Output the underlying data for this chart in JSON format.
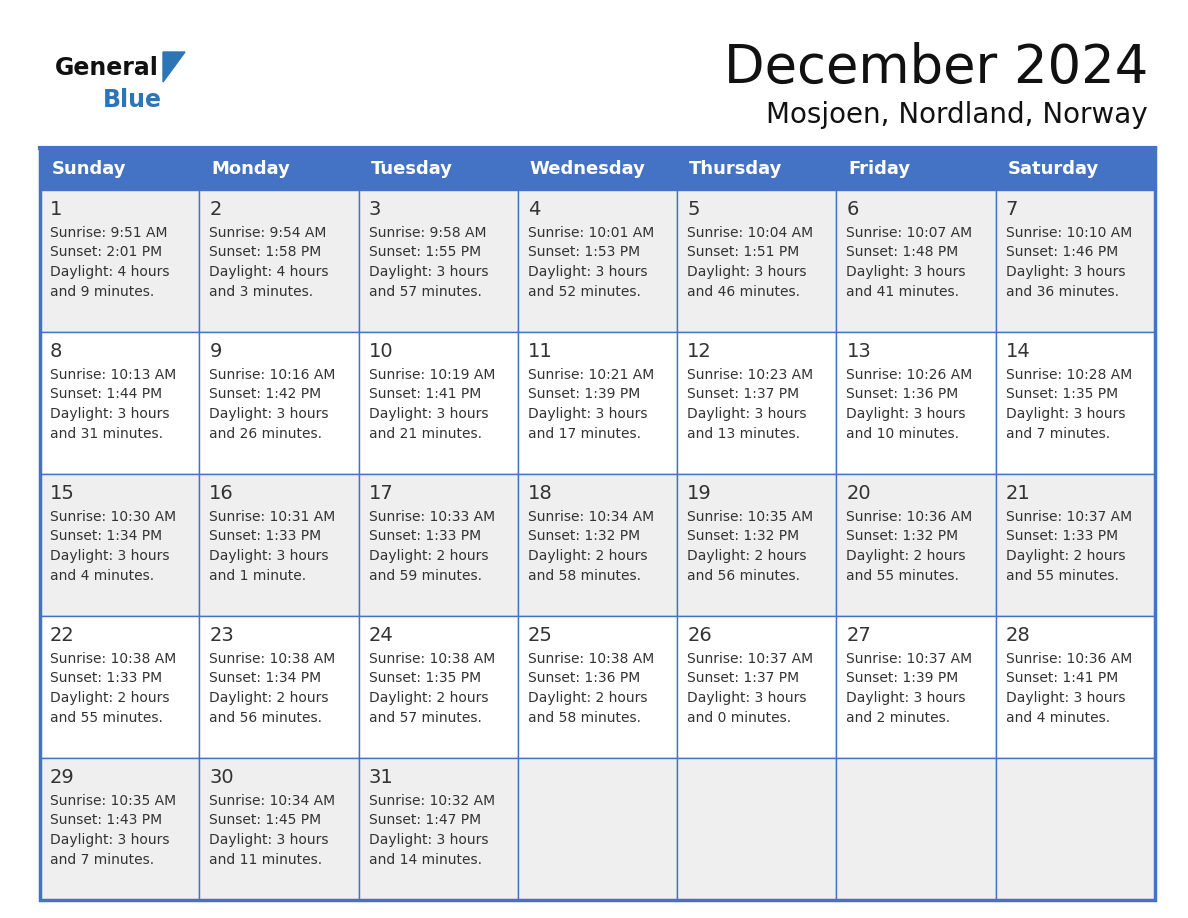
{
  "title": "December 2024",
  "subtitle": "Mosjoen, Nordland, Norway",
  "header_color": "#4472C4",
  "header_text_color": "#FFFFFF",
  "days_of_week": [
    "Sunday",
    "Monday",
    "Tuesday",
    "Wednesday",
    "Thursday",
    "Friday",
    "Saturday"
  ],
  "weeks": [
    [
      {
        "day": 1,
        "sunrise": "9:51 AM",
        "sunset": "2:01 PM",
        "daylight": "4 hours and 9 minutes."
      },
      {
        "day": 2,
        "sunrise": "9:54 AM",
        "sunset": "1:58 PM",
        "daylight": "4 hours and 3 minutes."
      },
      {
        "day": 3,
        "sunrise": "9:58 AM",
        "sunset": "1:55 PM",
        "daylight": "3 hours and 57 minutes."
      },
      {
        "day": 4,
        "sunrise": "10:01 AM",
        "sunset": "1:53 PM",
        "daylight": "3 hours and 52 minutes."
      },
      {
        "day": 5,
        "sunrise": "10:04 AM",
        "sunset": "1:51 PM",
        "daylight": "3 hours and 46 minutes."
      },
      {
        "day": 6,
        "sunrise": "10:07 AM",
        "sunset": "1:48 PM",
        "daylight": "3 hours and 41 minutes."
      },
      {
        "day": 7,
        "sunrise": "10:10 AM",
        "sunset": "1:46 PM",
        "daylight": "3 hours and 36 minutes."
      }
    ],
    [
      {
        "day": 8,
        "sunrise": "10:13 AM",
        "sunset": "1:44 PM",
        "daylight": "3 hours and 31 minutes."
      },
      {
        "day": 9,
        "sunrise": "10:16 AM",
        "sunset": "1:42 PM",
        "daylight": "3 hours and 26 minutes."
      },
      {
        "day": 10,
        "sunrise": "10:19 AM",
        "sunset": "1:41 PM",
        "daylight": "3 hours and 21 minutes."
      },
      {
        "day": 11,
        "sunrise": "10:21 AM",
        "sunset": "1:39 PM",
        "daylight": "3 hours and 17 minutes."
      },
      {
        "day": 12,
        "sunrise": "10:23 AM",
        "sunset": "1:37 PM",
        "daylight": "3 hours and 13 minutes."
      },
      {
        "day": 13,
        "sunrise": "10:26 AM",
        "sunset": "1:36 PM",
        "daylight": "3 hours and 10 minutes."
      },
      {
        "day": 14,
        "sunrise": "10:28 AM",
        "sunset": "1:35 PM",
        "daylight": "3 hours and 7 minutes."
      }
    ],
    [
      {
        "day": 15,
        "sunrise": "10:30 AM",
        "sunset": "1:34 PM",
        "daylight": "3 hours and 4 minutes."
      },
      {
        "day": 16,
        "sunrise": "10:31 AM",
        "sunset": "1:33 PM",
        "daylight": "3 hours and 1 minute."
      },
      {
        "day": 17,
        "sunrise": "10:33 AM",
        "sunset": "1:33 PM",
        "daylight": "2 hours and 59 minutes."
      },
      {
        "day": 18,
        "sunrise": "10:34 AM",
        "sunset": "1:32 PM",
        "daylight": "2 hours and 58 minutes."
      },
      {
        "day": 19,
        "sunrise": "10:35 AM",
        "sunset": "1:32 PM",
        "daylight": "2 hours and 56 minutes."
      },
      {
        "day": 20,
        "sunrise": "10:36 AM",
        "sunset": "1:32 PM",
        "daylight": "2 hours and 55 minutes."
      },
      {
        "day": 21,
        "sunrise": "10:37 AM",
        "sunset": "1:33 PM",
        "daylight": "2 hours and 55 minutes."
      }
    ],
    [
      {
        "day": 22,
        "sunrise": "10:38 AM",
        "sunset": "1:33 PM",
        "daylight": "2 hours and 55 minutes."
      },
      {
        "day": 23,
        "sunrise": "10:38 AM",
        "sunset": "1:34 PM",
        "daylight": "2 hours and 56 minutes."
      },
      {
        "day": 24,
        "sunrise": "10:38 AM",
        "sunset": "1:35 PM",
        "daylight": "2 hours and 57 minutes."
      },
      {
        "day": 25,
        "sunrise": "10:38 AM",
        "sunset": "1:36 PM",
        "daylight": "2 hours and 58 minutes."
      },
      {
        "day": 26,
        "sunrise": "10:37 AM",
        "sunset": "1:37 PM",
        "daylight": "3 hours and 0 minutes."
      },
      {
        "day": 27,
        "sunrise": "10:37 AM",
        "sunset": "1:39 PM",
        "daylight": "3 hours and 2 minutes."
      },
      {
        "day": 28,
        "sunrise": "10:36 AM",
        "sunset": "1:41 PM",
        "daylight": "3 hours and 4 minutes."
      }
    ],
    [
      {
        "day": 29,
        "sunrise": "10:35 AM",
        "sunset": "1:43 PM",
        "daylight": "3 hours and 7 minutes."
      },
      {
        "day": 30,
        "sunrise": "10:34 AM",
        "sunset": "1:45 PM",
        "daylight": "3 hours and 11 minutes."
      },
      {
        "day": 31,
        "sunrise": "10:32 AM",
        "sunset": "1:47 PM",
        "daylight": "3 hours and 14 minutes."
      },
      null,
      null,
      null,
      null
    ]
  ],
  "bg_color": "#FFFFFF",
  "cell_bg_even": "#FFFFFF",
  "cell_bg_odd": "#EFEFEF",
  "border_color": "#4472C4",
  "text_color": "#333333",
  "logo_general_color": "#111111",
  "logo_blue_color": "#2E75B6",
  "logo_triangle_color": "#2E75B6"
}
